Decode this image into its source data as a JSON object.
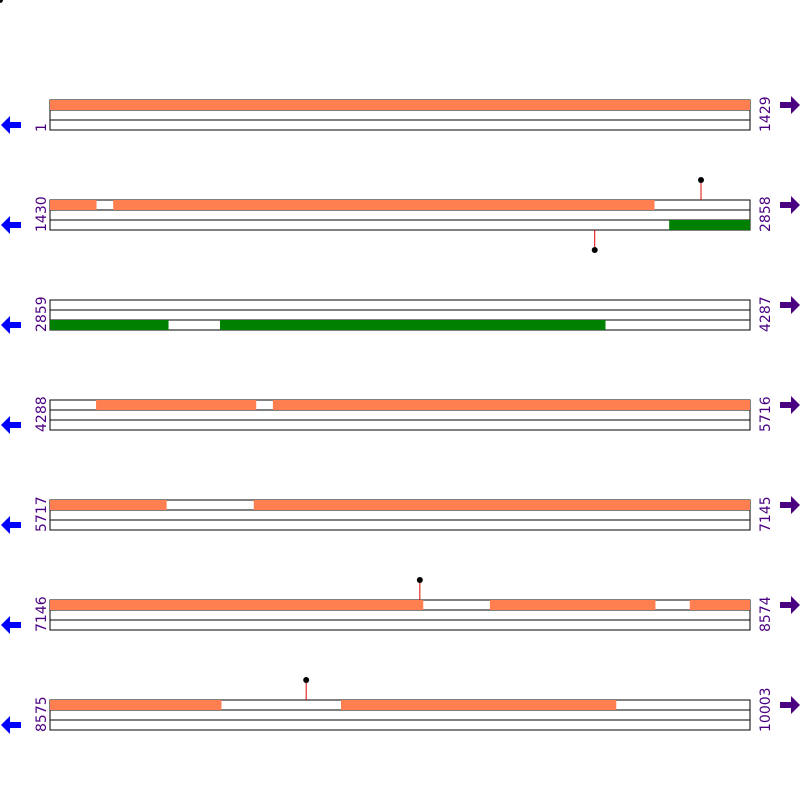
{
  "rows": [
    {
      "start": 1,
      "end": 1429,
      "features": [
        {
          "frame": 0,
          "start": 1,
          "end": 1429,
          "color": "#ff7f50"
        }
      ],
      "pins": []
    },
    {
      "start": 1430,
      "end": 2858,
      "features": [
        {
          "frame": 0,
          "start": 1430,
          "end": 1524,
          "color": "#ff7f50"
        },
        {
          "frame": 0,
          "start": 1559,
          "end": 2663,
          "color": "#ff7f50"
        },
        {
          "frame": 2,
          "start": 2694,
          "end": 2858,
          "color": "#008000"
        }
      ],
      "pins": [
        {
          "frame": 0,
          "position": 2759
        },
        {
          "frame": 2,
          "position": 2542
        }
      ]
    },
    {
      "start": 2859,
      "end": 4287,
      "features": [
        {
          "frame": 2,
          "start": 2859,
          "end": 3100,
          "color": "#008000"
        },
        {
          "frame": 2,
          "start": 3206,
          "end": 3992,
          "color": "#008000"
        }
      ],
      "pins": []
    },
    {
      "start": 4288,
      "end": 5716,
      "features": [
        {
          "frame": 0,
          "start": 4382,
          "end": 4708,
          "color": "#ff7f50"
        },
        {
          "frame": 0,
          "start": 4743,
          "end": 5716,
          "color": "#ff7f50"
        }
      ],
      "pins": []
    },
    {
      "start": 5717,
      "end": 7145,
      "features": [
        {
          "frame": 0,
          "start": 5717,
          "end": 5954,
          "color": "#ff7f50"
        },
        {
          "frame": 0,
          "start": 6133,
          "end": 7145,
          "color": "#ff7f50"
        }
      ],
      "pins": []
    },
    {
      "start": 7146,
      "end": 8574,
      "features": [
        {
          "frame": 0,
          "start": 7146,
          "end": 7907,
          "color": "#ff7f50"
        },
        {
          "frame": 0,
          "start": 8044,
          "end": 8381,
          "color": "#ff7f50"
        },
        {
          "frame": 0,
          "start": 8452,
          "end": 8574,
          "color": "#ff7f50"
        }
      ],
      "pins": [
        {
          "frame": 0,
          "position": 7901
        }
      ]
    },
    {
      "start": 8575,
      "end": 10003,
      "features": [
        {
          "frame": 0,
          "start": 8575,
          "end": 8924,
          "color": "#ff7f50"
        },
        {
          "frame": 0,
          "start": 9169,
          "end": 9730,
          "color": "#ff7f50"
        }
      ],
      "pins": [
        {
          "frame": 0,
          "position": 9098
        }
      ]
    }
  ]
}
